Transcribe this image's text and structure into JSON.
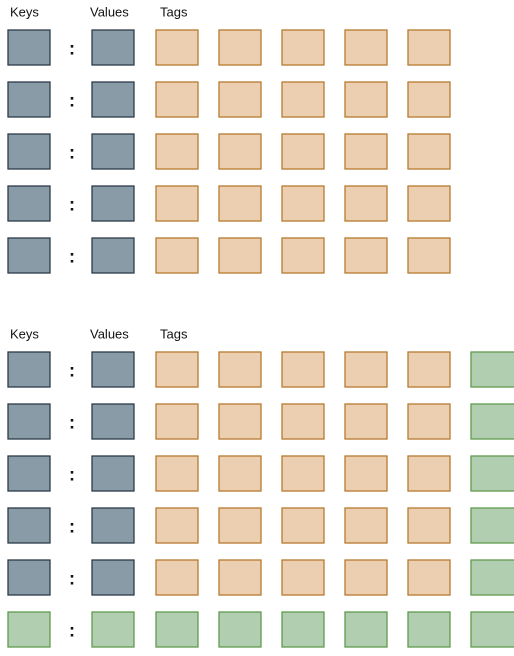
{
  "panels": [
    {
      "headers": {
        "keys": "Keys",
        "values": "Values",
        "tags": "Tags"
      }
    },
    {
      "headers": {
        "keys": "Keys",
        "values": "Values",
        "tags": "Tags"
      }
    }
  ],
  "separator": ":"
}
